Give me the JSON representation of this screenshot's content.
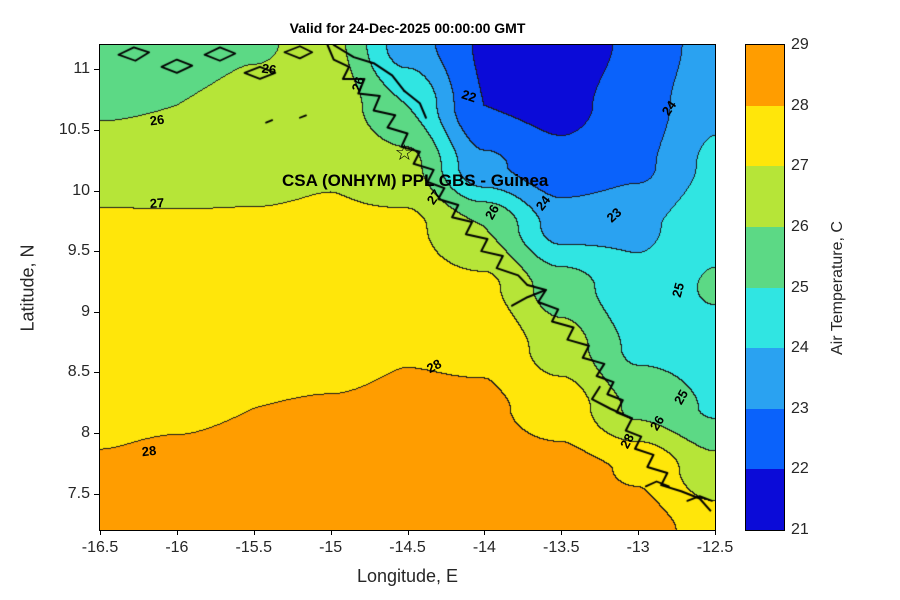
{
  "figure": {
    "annotation": {
      "text": "CSA (ONHYM) PPL GBS  - Guinea",
      "lon": -14.45,
      "lat": 10.08
    },
    "star_marker": {
      "symbol": "☆",
      "lon": -14.52,
      "lat": 10.3
    }
  },
  "chart_data": {
    "type": "heatmap",
    "subtype": "filled-contour-map",
    "title": "Valid for 24-Dec-2025 00:00:00 GMT",
    "xlabel": "Longitude, E",
    "ylabel": "Latitude, N",
    "colorbar_label": "Air Temperature, C",
    "xlim": [
      -16.5,
      -12.5
    ],
    "ylim": [
      7.2,
      11.2
    ],
    "xticks": [
      -16.5,
      -16,
      -15.5,
      -15,
      -14.5,
      -14,
      -13.5,
      -13,
      -12.5
    ],
    "yticks": [
      7.5,
      8,
      8.5,
      9,
      9.5,
      10,
      10.5,
      11
    ],
    "levels": [
      21,
      22,
      23,
      24,
      25,
      26,
      27,
      28,
      29
    ],
    "colorbar_ticks": [
      21,
      22,
      23,
      24,
      25,
      26,
      27,
      28,
      29
    ],
    "band_colors": [
      "#0b0bd8",
      "#0a62fb",
      "#2aa2f1",
      "#30e5e2",
      "#5cd985",
      "#b6e538",
      "#ffe60a",
      "#ff9d00"
    ],
    "contour_line_color": "#1a1a1a",
    "coast_color": "#000000",
    "grid": {
      "lon": [
        -16.5,
        -16.0,
        -15.5,
        -15.0,
        -14.5,
        -14.0,
        -13.5,
        -13.0,
        -12.5
      ],
      "lat": [
        7.2,
        7.7,
        8.2,
        8.7,
        9.2,
        9.7,
        10.2,
        10.7,
        11.2
      ],
      "values": [
        [
          28.2,
          28.3,
          28.4,
          28.45,
          28.5,
          28.5,
          28.5,
          28.4,
          27.6
        ],
        [
          28.05,
          28.15,
          28.25,
          28.3,
          28.35,
          28.4,
          28.3,
          27.9,
          26.3
        ],
        [
          27.85,
          27.9,
          28.0,
          28.05,
          28.15,
          28.15,
          27.6,
          25.8,
          24.9
        ],
        [
          27.6,
          27.6,
          27.6,
          27.7,
          27.95,
          27.85,
          26.5,
          24.8,
          24.6
        ],
        [
          27.3,
          27.3,
          27.3,
          27.35,
          27.4,
          27.2,
          25.5,
          24.3,
          25.1
        ],
        [
          27.15,
          27.1,
          27.1,
          27.15,
          27.2,
          26.0,
          23.6,
          23.8,
          24.7
        ],
        [
          26.5,
          26.6,
          26.7,
          26.9,
          26.3,
          23.2,
          22.3,
          22.8,
          24.2
        ],
        [
          25.9,
          26.0,
          26.3,
          26.6,
          25.0,
          22.0,
          21.7,
          22.5,
          23.8
        ],
        [
          25.6,
          25.5,
          25.9,
          26.3,
          23.5,
          21.9,
          21.4,
          22.2,
          23.5
        ]
      ]
    },
    "contour_labels": [
      {
        "t": "26",
        "lon": -16.13,
        "lat": 10.58,
        "r": -8
      },
      {
        "t": "26",
        "lon": -15.4,
        "lat": 11.0,
        "r": 8
      },
      {
        "t": "26",
        "lon": -14.82,
        "lat": 10.88,
        "r": -72
      },
      {
        "t": "22",
        "lon": -14.1,
        "lat": 10.78,
        "r": 18
      },
      {
        "t": "24",
        "lon": -12.8,
        "lat": 10.68,
        "r": -55
      },
      {
        "t": "27",
        "lon": -16.13,
        "lat": 9.9,
        "r": -4
      },
      {
        "t": "27",
        "lon": -14.33,
        "lat": 9.95,
        "r": -55
      },
      {
        "t": "26",
        "lon": -13.95,
        "lat": 9.82,
        "r": -60
      },
      {
        "t": "24",
        "lon": -13.62,
        "lat": 9.9,
        "r": -52
      },
      {
        "t": "23",
        "lon": -13.16,
        "lat": 9.8,
        "r": -42
      },
      {
        "t": "25",
        "lon": -12.74,
        "lat": 9.18,
        "r": -75
      },
      {
        "t": "28",
        "lon": -14.33,
        "lat": 8.55,
        "r": -28
      },
      {
        "t": "28",
        "lon": -16.18,
        "lat": 7.85,
        "r": -6
      },
      {
        "t": "25",
        "lon": -12.72,
        "lat": 8.3,
        "r": -60
      },
      {
        "t": "26",
        "lon": -12.88,
        "lat": 8.08,
        "r": -58
      },
      {
        "t": "28",
        "lon": -13.07,
        "lat": 7.93,
        "r": -62
      }
    ],
    "coastline": {
      "main": [
        [
          -15.02,
          11.2
        ],
        [
          -14.98,
          11.08
        ],
        [
          -14.88,
          11.02
        ],
        [
          -14.92,
          10.92
        ],
        [
          -14.78,
          10.92
        ],
        [
          -14.82,
          10.8
        ],
        [
          -14.68,
          10.78
        ],
        [
          -14.72,
          10.66
        ],
        [
          -14.58,
          10.62
        ],
        [
          -14.63,
          10.52
        ],
        [
          -14.5,
          10.47
        ],
        [
          -14.54,
          10.36
        ],
        [
          -14.42,
          10.32
        ],
        [
          -14.46,
          10.22
        ],
        [
          -14.33,
          10.17
        ],
        [
          -14.37,
          10.07
        ],
        [
          -14.26,
          10.02
        ],
        [
          -14.3,
          9.93
        ],
        [
          -14.17,
          9.88
        ],
        [
          -14.21,
          9.78
        ],
        [
          -14.08,
          9.74
        ],
        [
          -14.12,
          9.64
        ],
        [
          -13.98,
          9.6
        ],
        [
          -14.02,
          9.5
        ],
        [
          -13.88,
          9.46
        ],
        [
          -13.92,
          9.36
        ],
        [
          -13.78,
          9.3
        ],
        [
          -13.72,
          9.22
        ],
        [
          -13.6,
          9.18
        ],
        [
          -13.65,
          9.08
        ],
        [
          -13.52,
          9.02
        ],
        [
          -13.56,
          8.92
        ],
        [
          -13.42,
          8.87
        ],
        [
          -13.46,
          8.77
        ],
        [
          -13.32,
          8.72
        ],
        [
          -13.36,
          8.62
        ],
        [
          -13.22,
          8.57
        ],
        [
          -13.27,
          8.47
        ],
        [
          -13.16,
          8.42
        ],
        [
          -13.2,
          8.32
        ],
        [
          -13.1,
          8.27
        ],
        [
          -13.14,
          8.17
        ],
        [
          -13.04,
          8.12
        ],
        [
          -13.08,
          8.02
        ],
        [
          -12.98,
          7.97
        ],
        [
          -13.02,
          7.87
        ],
        [
          -12.9,
          7.82
        ],
        [
          -12.94,
          7.72
        ],
        [
          -12.81,
          7.67
        ],
        [
          -12.85,
          7.57
        ],
        [
          -12.72,
          7.52
        ],
        [
          -12.6,
          7.46
        ],
        [
          -12.53,
          7.36
        ]
      ],
      "branches": [
        [
          [
            -14.98,
            11.2
          ],
          [
            -14.85,
            11.1
          ],
          [
            -14.72,
            11.05
          ],
          [
            -14.6,
            10.95
          ],
          [
            -14.52,
            10.82
          ]
        ],
        [
          [
            -14.52,
            10.82
          ],
          [
            -14.42,
            10.72
          ],
          [
            -14.38,
            10.6
          ]
        ],
        [
          [
            -13.6,
            9.18
          ],
          [
            -13.72,
            9.12
          ],
          [
            -13.82,
            9.05
          ]
        ],
        [
          [
            -13.04,
            8.12
          ],
          [
            -13.18,
            8.2
          ],
          [
            -13.3,
            8.28
          ],
          [
            -13.25,
            8.38
          ]
        ]
      ],
      "islands": [
        [
          [
            -16.38,
            11.12
          ],
          [
            -16.28,
            11.18
          ],
          [
            -16.18,
            11.14
          ],
          [
            -16.27,
            11.07
          ],
          [
            -16.38,
            11.12
          ]
        ],
        [
          [
            -16.1,
            11.02
          ],
          [
            -16.0,
            11.08
          ],
          [
            -15.9,
            11.03
          ],
          [
            -16.0,
            10.97
          ],
          [
            -16.1,
            11.02
          ]
        ],
        [
          [
            -15.82,
            11.12
          ],
          [
            -15.72,
            11.18
          ],
          [
            -15.62,
            11.13
          ],
          [
            -15.72,
            11.07
          ],
          [
            -15.82,
            11.12
          ]
        ],
        [
          [
            -15.56,
            10.97
          ],
          [
            -15.46,
            11.02
          ],
          [
            -15.36,
            10.97
          ],
          [
            -15.46,
            10.92
          ],
          [
            -15.56,
            10.97
          ]
        ],
        [
          [
            -15.3,
            11.14
          ],
          [
            -15.2,
            11.19
          ],
          [
            -15.12,
            11.14
          ],
          [
            -15.2,
            11.09
          ],
          [
            -15.3,
            11.14
          ]
        ],
        [
          [
            -15.42,
            10.56
          ],
          [
            -15.38,
            10.58
          ]
        ],
        [
          [
            -15.2,
            10.6
          ],
          [
            -15.16,
            10.62
          ]
        ],
        [
          [
            -12.95,
            7.56
          ],
          [
            -12.88,
            7.6
          ],
          [
            -12.8,
            7.56
          ]
        ],
        [
          [
            -12.68,
            7.44
          ],
          [
            -12.6,
            7.48
          ],
          [
            -12.52,
            7.44
          ]
        ]
      ]
    }
  }
}
